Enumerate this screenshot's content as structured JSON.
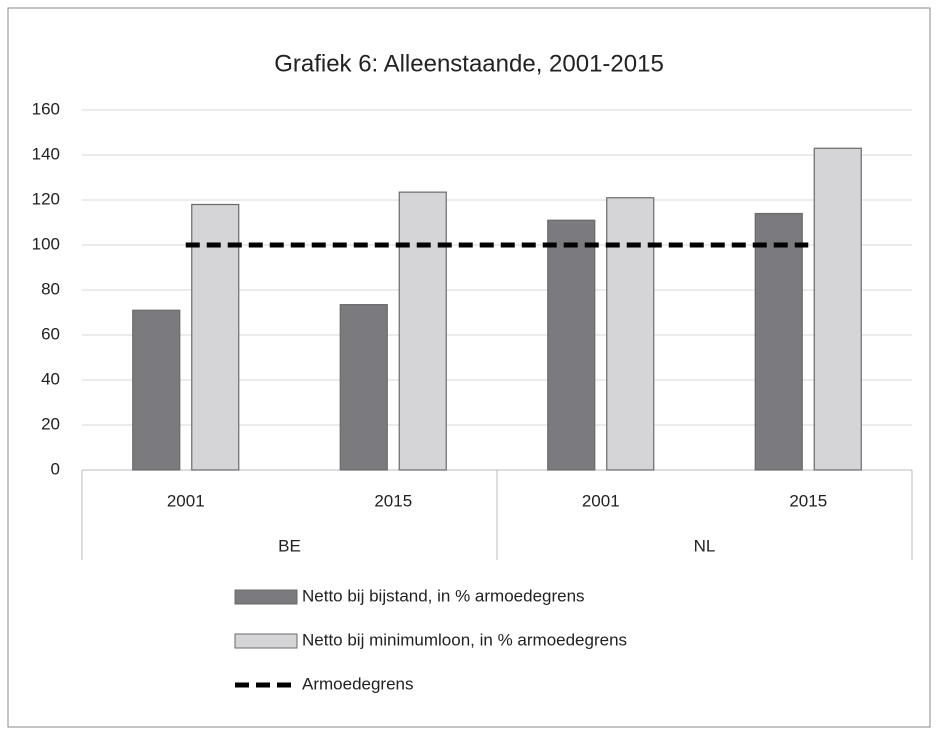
{
  "chart_data": {
    "type": "bar",
    "title": "Grafiek 6: Alleenstaande, 2001-2015",
    "groups": [
      {
        "name": "BE",
        "categories": [
          "2001",
          "2015"
        ]
      },
      {
        "name": "NL",
        "categories": [
          "2001",
          "2015"
        ]
      }
    ],
    "series": [
      {
        "name": "Netto bij bijstand, in % armoedegrens",
        "type": "bar",
        "color": "#7b7b7f",
        "values": [
          71,
          73.5,
          111,
          114
        ]
      },
      {
        "name": "Netto bij minimumloon, in % armoedegrens",
        "type": "bar",
        "color": "#d5d5d7",
        "values": [
          118,
          123.5,
          121,
          143
        ]
      },
      {
        "name": "Armoedegrens",
        "type": "line",
        "color": "#000000",
        "dashed": true,
        "values": [
          100,
          100,
          100,
          100
        ]
      }
    ],
    "ylim": [
      0,
      160
    ],
    "yticks": [
      0,
      20,
      40,
      60,
      80,
      100,
      120,
      140,
      160
    ],
    "grid": true
  }
}
